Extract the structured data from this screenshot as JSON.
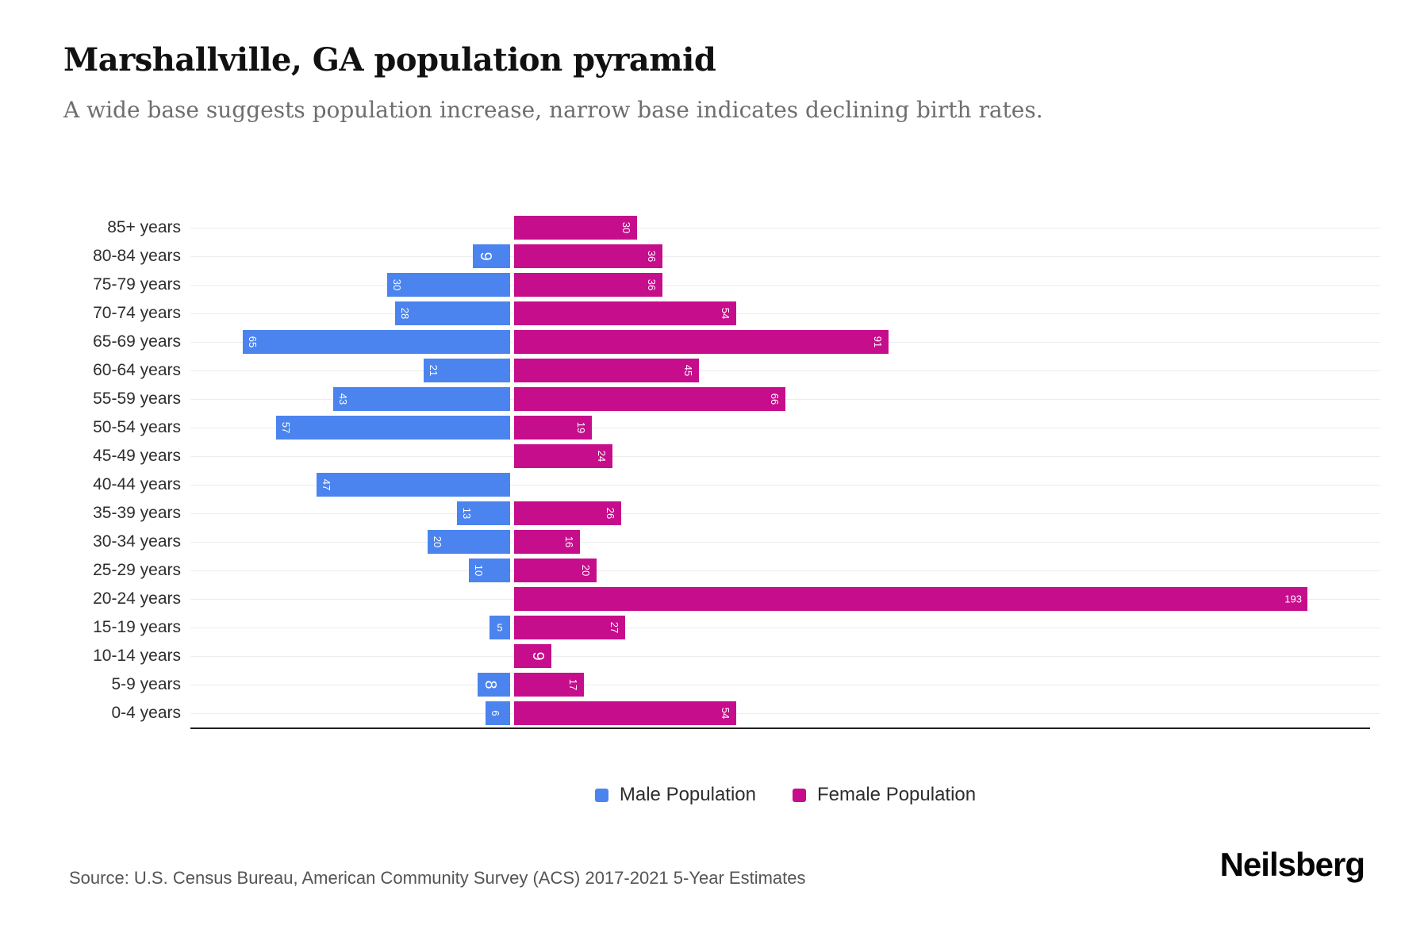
{
  "header": {
    "title": "Marshallville, GA population pyramid",
    "subtitle": "A wide base suggests population increase, narrow base indicates declining birth rates."
  },
  "chart_data": {
    "type": "bar",
    "subtype": "population-pyramid",
    "title": "Marshallville, GA population pyramid",
    "categories": [
      "85+ years",
      "80-84 years",
      "75-79 years",
      "70-74 years",
      "65-69 years",
      "60-64 years",
      "55-59 years",
      "50-54 years",
      "45-49 years",
      "40-44 years",
      "35-39 years",
      "30-34 years",
      "25-29 years",
      "20-24 years",
      "15-19 years",
      "10-14 years",
      "5-9 years",
      "0-4 years"
    ],
    "series": [
      {
        "name": "Male Population",
        "color": "#4B84EE",
        "direction": "left",
        "values": [
          0,
          9,
          30,
          28,
          65,
          21,
          43,
          57,
          0,
          47,
          13,
          20,
          10,
          0,
          5,
          0,
          8,
          6
        ]
      },
      {
        "name": "Female Population",
        "color": "#C60D8C",
        "direction": "right",
        "values": [
          30,
          36,
          36,
          54,
          91,
          45,
          66,
          19,
          24,
          0,
          26,
          16,
          20,
          193,
          27,
          9,
          17,
          54
        ]
      }
    ],
    "max_value": 193,
    "value_labels": "white, inside outer end of bars, mostly rotated 90deg",
    "gridlines": true,
    "legend_position": "bottom-center",
    "grid_color": "#ededed",
    "axis_line_color": "#1f1f1f"
  },
  "legend": {
    "male_label": "Male Population",
    "female_label": "Female Population"
  },
  "footer": {
    "source": "Source: U.S. Census Bureau, American Community Survey (ACS) 2017-2021 5-Year Estimates",
    "brand": "Neilsberg"
  }
}
